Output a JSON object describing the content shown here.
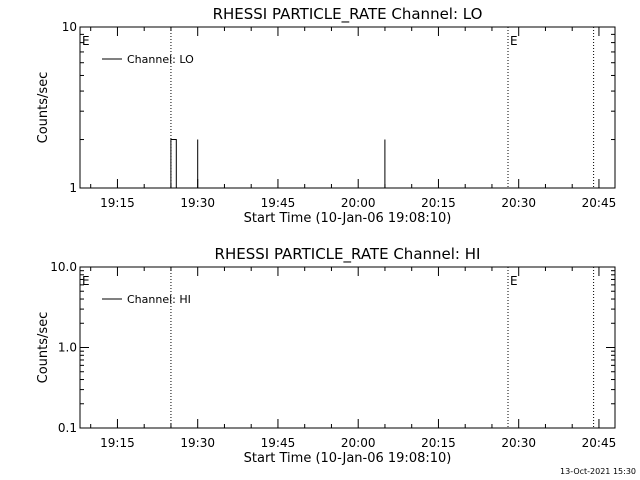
{
  "chart_data": [
    {
      "type": "line",
      "title": "RHESSI PARTICLE_RATE Channel: LO",
      "xlabel": "Start Time (10-Jan-06 19:08:10)",
      "ylabel": "Counts/sec",
      "yscale": "log",
      "ylim": [
        1,
        10
      ],
      "xlim": [
        "19:08",
        "20:48"
      ],
      "x_ticks": [
        "19:15",
        "19:30",
        "19:45",
        "20:00",
        "20:15",
        "20:30",
        "20:45"
      ],
      "y_ticks": [
        "1",
        "10"
      ],
      "grid": false,
      "legend": {
        "position": "top-left",
        "entries": [
          "Channel: LO"
        ]
      },
      "series": [
        {
          "name": "Channel: LO",
          "points": [
            [
              "19:08",
              1
            ],
            [
              "19:25",
              1
            ],
            [
              "19:25",
              2
            ],
            [
              "19:26",
              2
            ],
            [
              "19:26",
              1
            ],
            [
              "19:30",
              1
            ],
            [
              "19:30",
              2
            ],
            [
              "19:30",
              1
            ],
            [
              "20:05",
              1
            ],
            [
              "20:05",
              2
            ],
            [
              "20:05",
              1
            ],
            [
              "20:48",
              1
            ]
          ]
        }
      ],
      "vlines": [
        "19:25",
        "20:28",
        "20:44"
      ],
      "markers": [
        {
          "time": "19:08",
          "label": "E"
        },
        {
          "time": "20:28",
          "label": "E"
        }
      ]
    },
    {
      "type": "line",
      "title": "RHESSI PARTICLE_RATE Channel: HI",
      "xlabel": "Start Time (10-Jan-06 19:08:10)",
      "ylabel": "Counts/sec",
      "yscale": "log",
      "ylim": [
        0.1,
        10
      ],
      "xlim": [
        "19:08",
        "20:48"
      ],
      "x_ticks": [
        "19:15",
        "19:30",
        "19:45",
        "20:00",
        "20:15",
        "20:30",
        "20:45"
      ],
      "y_ticks": [
        "0.1",
        "1.0",
        "10.0"
      ],
      "grid": false,
      "legend": {
        "position": "top-left",
        "entries": [
          "Channel: HI"
        ]
      },
      "series": [
        {
          "name": "Channel: HI",
          "points": []
        }
      ],
      "vlines": [
        "19:25",
        "20:28",
        "20:44"
      ],
      "markers": [
        {
          "time": "19:08",
          "label": "E"
        },
        {
          "time": "20:28",
          "label": "E"
        }
      ]
    }
  ],
  "timestamp": "13-Oct-2021 15:30"
}
